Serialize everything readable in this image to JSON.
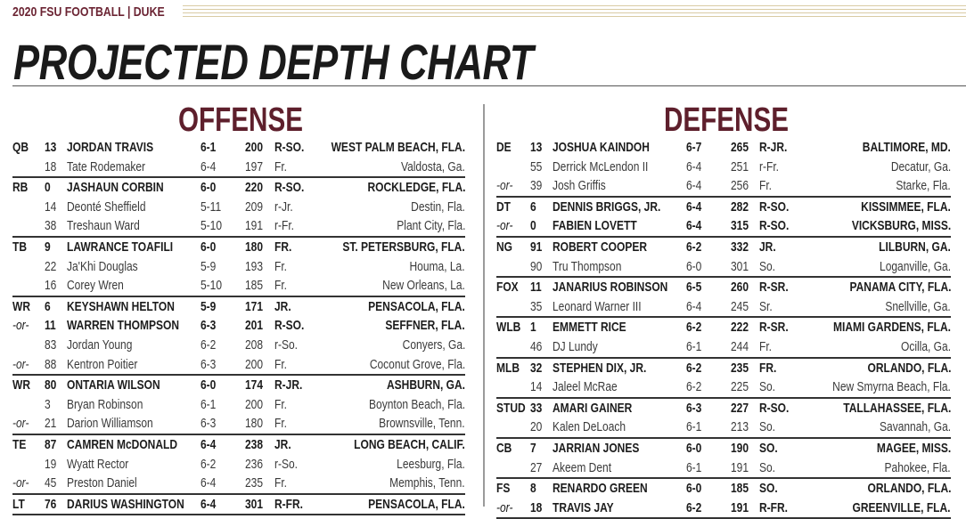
{
  "header": {
    "brand": "2020 FSU FOOTBALL | DUKE",
    "title": "PROJECTED DEPTH CHART",
    "accent_color": "#6b2433",
    "gold_color": "#d9cba4"
  },
  "offense": {
    "label": "OFFENSE",
    "groups": [
      {
        "rows": [
          {
            "pos": "QB",
            "num": "13",
            "name": "JORDAN TRAVIS",
            "ht": "6-1",
            "wt": "200",
            "yr": "R-SO.",
            "home": "WEST PALM BEACH, FLA.",
            "starter": true
          },
          {
            "pos": "",
            "num": "18",
            "name": "Tate Rodemaker",
            "ht": "6-4",
            "wt": "197",
            "yr": "Fr.",
            "home": "Valdosta, Ga.",
            "starter": false
          }
        ]
      },
      {
        "rows": [
          {
            "pos": "RB",
            "num": "0",
            "name": "JASHAUN CORBIN",
            "ht": "6-0",
            "wt": "220",
            "yr": "R-SO.",
            "home": "ROCKLEDGE, FLA.",
            "starter": true
          },
          {
            "pos": "",
            "num": "14",
            "name": "Deonté Sheffield",
            "ht": "5-11",
            "wt": "209",
            "yr": "r-Jr.",
            "home": "Destin, Fla.",
            "starter": false
          },
          {
            "pos": "",
            "num": "38",
            "name": "Treshaun Ward",
            "ht": "5-10",
            "wt": "191",
            "yr": "r-Fr.",
            "home": "Plant City, Fla.",
            "starter": false
          }
        ]
      },
      {
        "rows": [
          {
            "pos": "TB",
            "num": "9",
            "name": "LAWRANCE TOAFILI",
            "ht": "6-0",
            "wt": "180",
            "yr": "FR.",
            "home": "ST. PETERSBURG, FLA.",
            "starter": true
          },
          {
            "pos": "",
            "num": "22",
            "name": "Ja'Khi Douglas",
            "ht": "5-9",
            "wt": "193",
            "yr": "Fr.",
            "home": "Houma, La.",
            "starter": false
          },
          {
            "pos": "",
            "num": "16",
            "name": "Corey Wren",
            "ht": "5-10",
            "wt": "185",
            "yr": "Fr.",
            "home": "New Orleans, La.",
            "starter": false
          }
        ]
      },
      {
        "rows": [
          {
            "pos": "WR",
            "num": "6",
            "name": "KEYSHAWN HELTON",
            "ht": "5-9",
            "wt": "171",
            "yr": "JR.",
            "home": "PENSACOLA, FLA.",
            "starter": true
          },
          {
            "pos": "-or-",
            "num": "11",
            "name": "WARREN THOMPSON",
            "ht": "6-3",
            "wt": "201",
            "yr": "R-SO.",
            "home": "SEFFNER, FLA.",
            "starter": true
          },
          {
            "pos": "",
            "num": "83",
            "name": "Jordan Young",
            "ht": "6-2",
            "wt": "208",
            "yr": "r-So.",
            "home": "Conyers, Ga.",
            "starter": false
          },
          {
            "pos": "-or-",
            "num": "88",
            "name": "Kentron Poitier",
            "ht": "6-3",
            "wt": "200",
            "yr": "Fr.",
            "home": "Coconut Grove, Fla.",
            "starter": false
          }
        ]
      },
      {
        "rows": [
          {
            "pos": "WR",
            "num": "80",
            "name": "ONTARIA WILSON",
            "ht": "6-0",
            "wt": "174",
            "yr": "R-JR.",
            "home": "ASHBURN, GA.",
            "starter": true
          },
          {
            "pos": "",
            "num": "3",
            "name": "Bryan Robinson",
            "ht": "6-1",
            "wt": "200",
            "yr": "Fr.",
            "home": "Boynton Beach, Fla.",
            "starter": false
          },
          {
            "pos": "-or-",
            "num": "21",
            "name": "Darion Williamson",
            "ht": "6-3",
            "wt": "180",
            "yr": "Fr.",
            "home": "Brownsville, Tenn.",
            "starter": false
          }
        ]
      },
      {
        "rows": [
          {
            "pos": "TE",
            "num": "87",
            "name": "CAMREN McDONALD",
            "ht": "6-4",
            "wt": "238",
            "yr": "JR.",
            "home": "LONG BEACH, CALIF.",
            "starter": true
          },
          {
            "pos": "",
            "num": "19",
            "name": "Wyatt Rector",
            "ht": "6-2",
            "wt": "236",
            "yr": "r-So.",
            "home": "Leesburg, Fla.",
            "starter": false
          },
          {
            "pos": "-or-",
            "num": "45",
            "name": "Preston Daniel",
            "ht": "6-4",
            "wt": "235",
            "yr": "Fr.",
            "home": "Memphis, Tenn.",
            "starter": false
          }
        ]
      },
      {
        "rows": [
          {
            "pos": "LT",
            "num": "76",
            "name": "DARIUS WASHINGTON",
            "ht": "6-4",
            "wt": "301",
            "yr": "R-FR.",
            "home": "PENSACOLA, FLA.",
            "starter": true
          }
        ]
      }
    ]
  },
  "defense": {
    "label": "DEFENSE",
    "groups": [
      {
        "rows": [
          {
            "pos": "DE",
            "num": "13",
            "name": "JOSHUA KAINDOH",
            "ht": "6-7",
            "wt": "265",
            "yr": "R-JR.",
            "home": "BALTIMORE, MD.",
            "starter": true
          },
          {
            "pos": "",
            "num": "55",
            "name": "Derrick McLendon II",
            "ht": "6-4",
            "wt": "251",
            "yr": "r-Fr.",
            "home": "Decatur, Ga.",
            "starter": false
          },
          {
            "pos": "-or-",
            "num": "39",
            "name": "Josh Griffis",
            "ht": "6-4",
            "wt": "256",
            "yr": "Fr.",
            "home": "Starke, Fla.",
            "starter": false
          }
        ]
      },
      {
        "rows": [
          {
            "pos": "DT",
            "num": "6",
            "name": "DENNIS BRIGGS, JR.",
            "ht": "6-4",
            "wt": "282",
            "yr": "R-SO.",
            "home": "KISSIMMEE, FLA.",
            "starter": true
          },
          {
            "pos": "-or-",
            "num": "0",
            "name": "FABIEN LOVETT",
            "ht": "6-4",
            "wt": "315",
            "yr": "R-SO.",
            "home": "VICKSBURG, MISS.",
            "starter": true
          }
        ]
      },
      {
        "rows": [
          {
            "pos": "NG",
            "num": "91",
            "name": "ROBERT COOPER",
            "ht": "6-2",
            "wt": "332",
            "yr": "JR.",
            "home": "LILBURN, GA.",
            "starter": true
          },
          {
            "pos": "",
            "num": "90",
            "name": "Tru Thompson",
            "ht": "6-0",
            "wt": "301",
            "yr": "So.",
            "home": "Loganville, Ga.",
            "starter": false
          }
        ]
      },
      {
        "rows": [
          {
            "pos": "FOX",
            "num": "11",
            "name": "JANARIUS ROBINSON",
            "ht": "6-5",
            "wt": "260",
            "yr": "R-SR.",
            "home": "PANAMA CITY, FLA.",
            "starter": true
          },
          {
            "pos": "",
            "num": "35",
            "name": "Leonard Warner III",
            "ht": "6-4",
            "wt": "245",
            "yr": "Sr.",
            "home": "Snellville, Ga.",
            "starter": false
          }
        ]
      },
      {
        "rows": [
          {
            "pos": "WLB",
            "num": "1",
            "name": "EMMETT RICE",
            "ht": "6-2",
            "wt": "222",
            "yr": "R-SR.",
            "home": "MIAMI GARDENS, FLA.",
            "starter": true
          },
          {
            "pos": "",
            "num": "46",
            "name": "DJ Lundy",
            "ht": "6-1",
            "wt": "244",
            "yr": "Fr.",
            "home": "Ocilla, Ga.",
            "starter": false
          }
        ]
      },
      {
        "rows": [
          {
            "pos": "MLB",
            "num": "32",
            "name": "STEPHEN DIX, JR.",
            "ht": "6-2",
            "wt": "235",
            "yr": "FR.",
            "home": "ORLANDO, FLA.",
            "starter": true
          },
          {
            "pos": "",
            "num": "14",
            "name": "Jaleel McRae",
            "ht": "6-2",
            "wt": "225",
            "yr": "So.",
            "home": "New Smyrna Beach, Fla.",
            "starter": false
          }
        ]
      },
      {
        "rows": [
          {
            "pos": "STUD",
            "num": "33",
            "name": "AMARI GAINER",
            "ht": "6-3",
            "wt": "227",
            "yr": "R-SO.",
            "home": "TALLAHASSEE, FLA.",
            "starter": true
          },
          {
            "pos": "",
            "num": "20",
            "name": "Kalen DeLoach",
            "ht": "6-1",
            "wt": "213",
            "yr": "So.",
            "home": "Savannah, Ga.",
            "starter": false
          }
        ]
      },
      {
        "rows": [
          {
            "pos": "CB",
            "num": "7",
            "name": "JARRIAN JONES",
            "ht": "6-0",
            "wt": "190",
            "yr": "SO.",
            "home": "MAGEE, MISS.",
            "starter": true
          },
          {
            "pos": "",
            "num": "27",
            "name": "Akeem Dent",
            "ht": "6-1",
            "wt": "191",
            "yr": "So.",
            "home": "Pahokee, Fla.",
            "starter": false
          }
        ]
      },
      {
        "rows": [
          {
            "pos": "FS",
            "num": "8",
            "name": "RENARDO GREEN",
            "ht": "6-0",
            "wt": "185",
            "yr": "SO.",
            "home": "ORLANDO, FLA.",
            "starter": true
          },
          {
            "pos": "-or-",
            "num": "18",
            "name": "TRAVIS JAY",
            "ht": "6-2",
            "wt": "191",
            "yr": "R-FR.",
            "home": "GREENVILLE, FLA.",
            "starter": true
          }
        ]
      }
    ]
  }
}
